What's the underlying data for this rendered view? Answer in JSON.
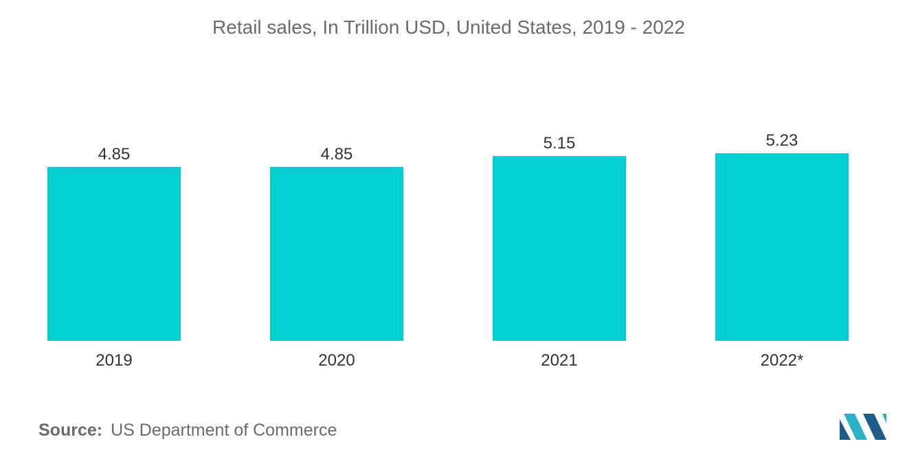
{
  "colors": {
    "bar": "#00CED1",
    "title": "#6b6b6b",
    "text": "#333333",
    "logo_dark": "#1d5d8a",
    "logo_light": "#2ab3c4"
  },
  "chart_data": {
    "type": "bar",
    "title": "Retail sales, In Trillion USD, United States, 2019 - 2022",
    "categories": [
      "2019",
      "2020",
      "2021",
      "2022*"
    ],
    "values": [
      4.85,
      4.85,
      5.15,
      5.23
    ],
    "value_labels": [
      "4.85",
      "4.85",
      "5.15",
      "5.23"
    ],
    "xlabel": "",
    "ylabel": "",
    "ylim": [
      0,
      5.23
    ],
    "grid": false,
    "legend": "none"
  },
  "source": {
    "key": "Source:",
    "value": "US Department of Commerce"
  },
  "logo": {
    "icon": "mordor-intelligence-logo-icon"
  }
}
